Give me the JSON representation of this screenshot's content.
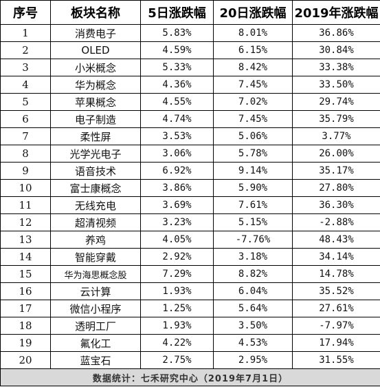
{
  "table": {
    "headers": [
      "序号",
      "板块名称",
      "5日涨跌幅",
      "20日涨跌幅",
      "2019年涨跌幅"
    ],
    "rows": [
      {
        "index": "1",
        "name": "消费电子",
        "d5": "5.83%",
        "d20": "8.01%",
        "ytd": "36.86%"
      },
      {
        "index": "2",
        "name": "OLED",
        "d5": "4.59%",
        "d20": "6.15%",
        "ytd": "30.84%"
      },
      {
        "index": "3",
        "name": "小米概念",
        "d5": "5.33%",
        "d20": "8.42%",
        "ytd": "33.38%"
      },
      {
        "index": "4",
        "name": "华为概念",
        "d5": "4.36%",
        "d20": "7.45%",
        "ytd": "33.50%"
      },
      {
        "index": "5",
        "name": "苹果概念",
        "d5": "4.55%",
        "d20": "7.02%",
        "ytd": "29.74%"
      },
      {
        "index": "6",
        "name": "电子制造",
        "d5": "4.74%",
        "d20": "7.45%",
        "ytd": "35.79%"
      },
      {
        "index": "7",
        "name": "柔性屏",
        "d5": "3.53%",
        "d20": "5.06%",
        "ytd": "3.77%"
      },
      {
        "index": "8",
        "name": "光学光电子",
        "d5": "3.06%",
        "d20": "5.78%",
        "ytd": "26.00%"
      },
      {
        "index": "9",
        "name": "语音技术",
        "d5": "6.92%",
        "d20": "9.14%",
        "ytd": "35.17%"
      },
      {
        "index": "10",
        "name": "富士康概念",
        "d5": "3.86%",
        "d20": "5.90%",
        "ytd": "27.80%"
      },
      {
        "index": "11",
        "name": "无线充电",
        "d5": "3.69%",
        "d20": "7.61%",
        "ytd": "36.30%"
      },
      {
        "index": "12",
        "name": "超清视频",
        "d5": "3.23%",
        "d20": "5.15%",
        "ytd": "-2.88%"
      },
      {
        "index": "13",
        "name": "养鸡",
        "d5": "4.05%",
        "d20": "-7.76%",
        "ytd": "48.43%"
      },
      {
        "index": "14",
        "name": "智能穿戴",
        "d5": "2.92%",
        "d20": "3.18%",
        "ytd": "34.14%"
      },
      {
        "index": "15",
        "name": "华为海思概念股",
        "d5": "7.29%",
        "d20": "8.82%",
        "ytd": "14.78%"
      },
      {
        "index": "16",
        "name": "云计算",
        "d5": "1.93%",
        "d20": "6.04%",
        "ytd": "35.52%"
      },
      {
        "index": "17",
        "name": "微信小程序",
        "d5": "1.25%",
        "d20": "5.64%",
        "ytd": "27.61%"
      },
      {
        "index": "18",
        "name": "透明工厂",
        "d5": "1.93%",
        "d20": "3.50%",
        "ytd": "-7.97%"
      },
      {
        "index": "19",
        "name": "氟化工",
        "d5": "4.22%",
        "d20": "4.53%",
        "ytd": "17.94%"
      },
      {
        "index": "20",
        "name": "蓝宝石",
        "d5": "2.75%",
        "d20": "2.95%",
        "ytd": "31.55%"
      }
    ],
    "footer": "数据统计：七禾研究中心（2019年7月1日）"
  }
}
